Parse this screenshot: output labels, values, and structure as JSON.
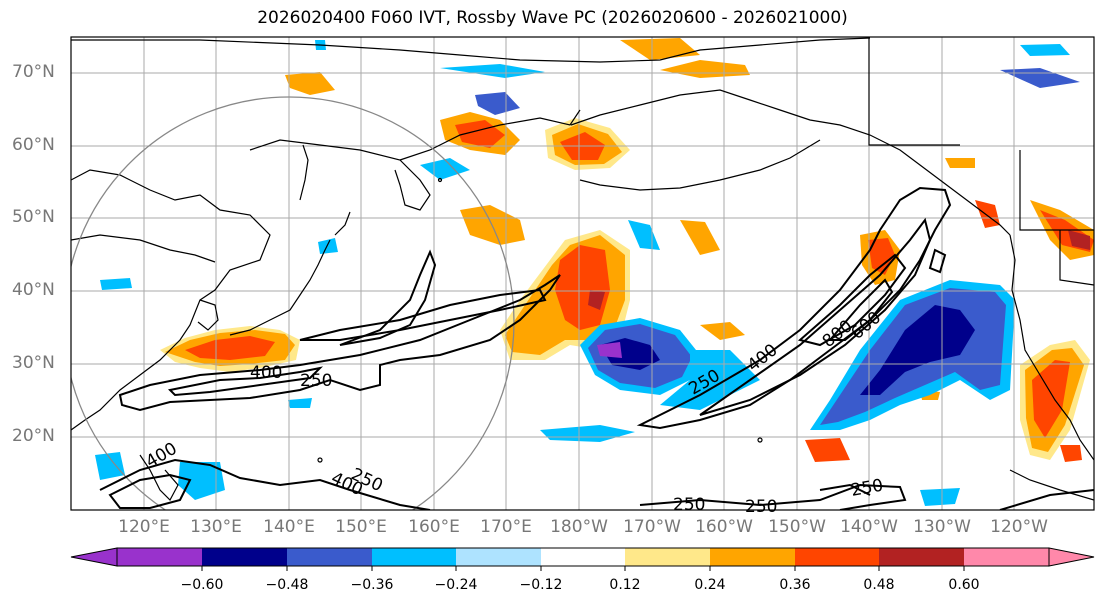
{
  "title": "2026020400 F060 IVT, Rossby Wave PC (2026020600 - 2026021000)",
  "map": {
    "projection": "equirectangular",
    "extent": {
      "lon_min": 110,
      "lon_max": 251,
      "lat_min": 10,
      "lat_max": 75
    },
    "lat_ticks": [
      "70°N",
      "60°N",
      "50°N",
      "40°N",
      "30°N",
      "20°N"
    ],
    "lon_ticks": [
      "120°E",
      "130°E",
      "140°E",
      "150°E",
      "160°E",
      "170°E",
      "180°W",
      "170°W",
      "160°W",
      "150°W",
      "140°W",
      "130°W",
      "120°W"
    ],
    "contour_labels": [
      "400",
      "250",
      "250",
      "400",
      "400",
      "250",
      "250",
      "250",
      "250",
      "400",
      "800",
      "600"
    ],
    "reference_circle": {
      "center_lon": 140,
      "center_lat": 40,
      "note_visible": false
    }
  },
  "colorbar": {
    "ticks": [
      "−0.60",
      "−0.48",
      "−0.36",
      "−0.24",
      "−0.12",
      "0.12",
      "0.24",
      "0.36",
      "0.48",
      "0.60"
    ],
    "colors": [
      "#9932cc",
      "#00008b",
      "#3a5bcc",
      "#00bfff",
      "#aee3ff",
      "#ffffff",
      "#ffe88a",
      "#ffa500",
      "#ff4500",
      "#b22222",
      "#ff88aa"
    ]
  },
  "colors": {
    "frame": "#000000",
    "grid": "#aaaaaa",
    "coast": "#000000",
    "contour": "#000000",
    "circle": "#888888"
  }
}
